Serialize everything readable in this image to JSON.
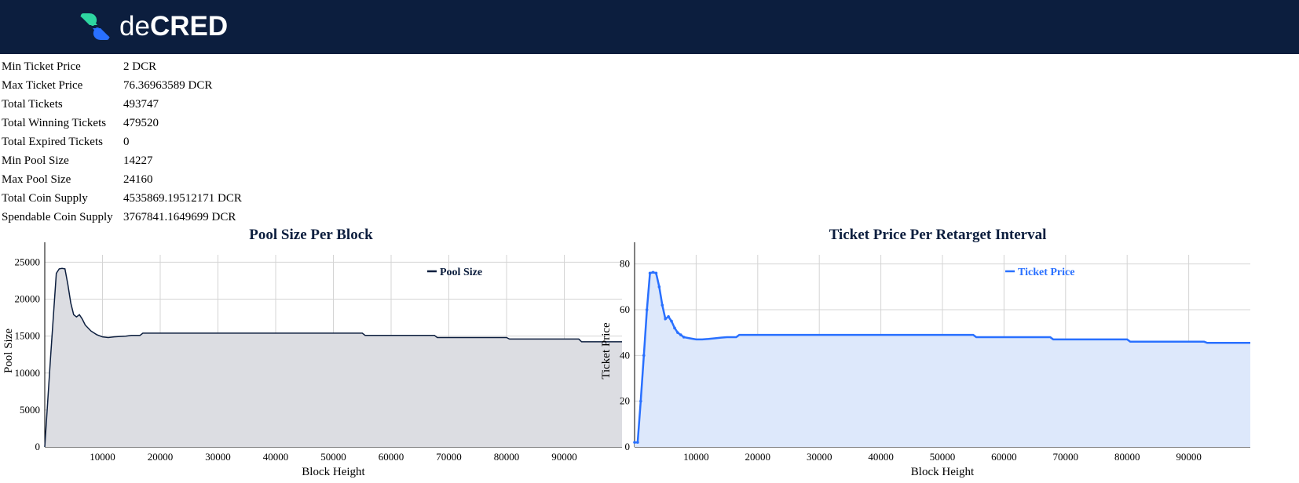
{
  "header": {
    "brand_part1": "de",
    "brand_part2": "CRED",
    "logo_icon": "decred-logo-icon",
    "background": "#0c1e3e"
  },
  "stats": [
    {
      "label": "Min Ticket Price",
      "value": "2 DCR"
    },
    {
      "label": "Max Ticket Price",
      "value": "76.36963589 DCR"
    },
    {
      "label": "Total Tickets",
      "value": "493747"
    },
    {
      "label": "Total Winning Tickets",
      "value": "479520"
    },
    {
      "label": "Total Expired Tickets",
      "value": "0"
    },
    {
      "label": "Min Pool Size",
      "value": "14227"
    },
    {
      "label": "Max Pool Size",
      "value": "24160"
    },
    {
      "label": "Total Coin Supply",
      "value": "4535869.19512171 DCR"
    },
    {
      "label": "Spendable Coin Supply",
      "value": "3767841.1649699 DCR"
    }
  ],
  "chart_data": [
    {
      "type": "area",
      "title": "Pool Size Per Block",
      "xlabel": "Block Height",
      "ylabel": "Pool Size",
      "xlim": [
        0,
        100000
      ],
      "ylim": [
        0,
        26000
      ],
      "xticks": [
        10000,
        20000,
        30000,
        40000,
        50000,
        60000,
        70000,
        80000,
        90000
      ],
      "yticks": [
        0,
        5000,
        10000,
        15000,
        20000,
        25000
      ],
      "grid": true,
      "legend": "top-right",
      "line_color": "#0c1e3e",
      "fill_color": "#dcdde2",
      "series": [
        {
          "name": "Pool Size",
          "x": [
            0,
            1000,
            2000,
            2500,
            3000,
            3500,
            4000,
            4500,
            5000,
            5500,
            6000,
            6500,
            7000,
            8000,
            9000,
            10000,
            11000,
            12000,
            13000,
            14000,
            15000,
            16500,
            17000,
            25000,
            35000,
            45000,
            55000,
            55500,
            62000,
            67500,
            68000,
            75000,
            80000,
            80500,
            87000,
            92500,
            93000,
            100000
          ],
          "y": [
            0,
            12000,
            23500,
            24100,
            24160,
            24100,
            22000,
            19500,
            17900,
            17600,
            17900,
            17300,
            16500,
            15700,
            15200,
            14900,
            14800,
            14900,
            14950,
            15000,
            15100,
            15100,
            15400,
            15400,
            15400,
            15400,
            15400,
            15100,
            15100,
            15100,
            14800,
            14800,
            14800,
            14600,
            14600,
            14600,
            14227,
            14227
          ]
        }
      ]
    },
    {
      "type": "area",
      "title": "Ticket Price Per Retarget Interval",
      "xlabel": "Block Height",
      "ylabel": "Ticket Price",
      "xlim": [
        0,
        100000
      ],
      "ylim": [
        0,
        84
      ],
      "xticks": [
        10000,
        20000,
        30000,
        40000,
        50000,
        60000,
        70000,
        80000,
        90000
      ],
      "yticks": [
        0,
        20,
        40,
        60,
        80
      ],
      "grid": true,
      "legend": "top-right",
      "line_color": "#2970ff",
      "fill_color": "#dde8fb",
      "series": [
        {
          "name": "Ticket Price",
          "x": [
            0,
            500,
            1000,
            1500,
            2000,
            2500,
            3000,
            3500,
            4000,
            4500,
            5000,
            5500,
            6000,
            6500,
            7000,
            7500,
            8000,
            9000,
            10000,
            11000,
            12000,
            13000,
            14000,
            15000,
            16500,
            17000,
            25000,
            35000,
            45000,
            55000,
            55500,
            62000,
            67500,
            68000,
            75000,
            80000,
            80500,
            87000,
            92500,
            93000,
            100000
          ],
          "y": [
            2,
            2,
            20,
            40,
            60,
            76,
            76.37,
            76,
            70,
            62,
            56,
            57,
            55,
            52,
            50,
            49,
            48,
            47.5,
            47,
            47,
            47.2,
            47.5,
            47.8,
            48,
            48,
            49,
            49,
            49,
            49,
            49,
            48,
            48,
            48,
            47,
            47,
            47,
            46,
            46,
            46,
            45.5,
            45.5
          ]
        }
      ]
    }
  ]
}
